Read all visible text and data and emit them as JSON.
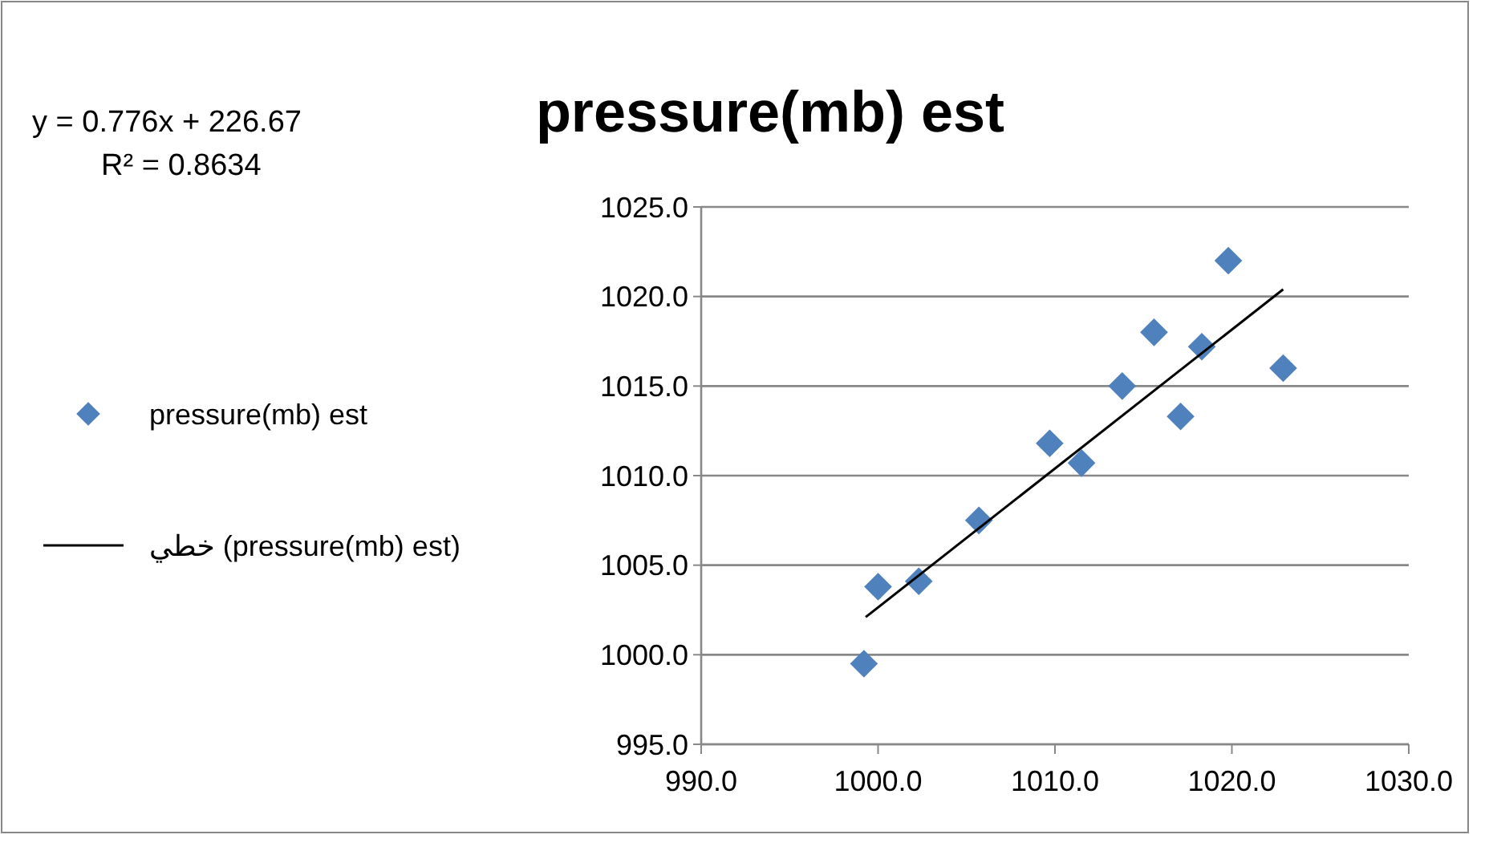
{
  "chart_data": {
    "type": "scatter",
    "title": "pressure(mb) est",
    "annotations": [
      "y = 0.776x + 226.67",
      "R² = 0.8634"
    ],
    "series": [
      {
        "name": "pressure(mb) est",
        "color": "#4f81bd",
        "marker": "diamond",
        "x": [
          999.2,
          1000.0,
          1002.3,
          1005.7,
          1009.7,
          1011.5,
          1013.8,
          1015.6,
          1017.1,
          1018.3,
          1019.8,
          1022.9
        ],
        "values": [
          999.5,
          1003.8,
          1004.1,
          1007.5,
          1011.8,
          1010.7,
          1015.0,
          1018.0,
          1013.3,
          1017.2,
          1022.0,
          1016.0
        ]
      },
      {
        "name": "خطي (pressure(mb) est)",
        "type": "line",
        "color": "#000000",
        "marker": "none",
        "line_style": "solid",
        "x": [
          999.3,
          1022.9
        ],
        "values": [
          1002.1,
          1020.4
        ]
      }
    ],
    "xlim": [
      990,
      1030
    ],
    "xticks": [
      {
        "value": 990,
        "label": "990.0"
      },
      {
        "value": 1000,
        "label": "1000.0"
      },
      {
        "value": 1010,
        "label": "1010.0"
      },
      {
        "value": 1020,
        "label": "1020.0"
      },
      {
        "value": 1030,
        "label": "1030.0"
      }
    ],
    "ylim": [
      995,
      1025
    ],
    "yticks": [
      {
        "value": 995,
        "label": "995.0"
      },
      {
        "value": 1000,
        "label": "1000.0"
      },
      {
        "value": 1005,
        "label": "1005.0"
      },
      {
        "value": 1010,
        "label": "1010.0"
      },
      {
        "value": 1015,
        "label": "1015.0"
      },
      {
        "value": 1020,
        "label": "1020.0"
      },
      {
        "value": 1025,
        "label": "1025.0"
      }
    ],
    "grid": "y",
    "legend": "left"
  }
}
